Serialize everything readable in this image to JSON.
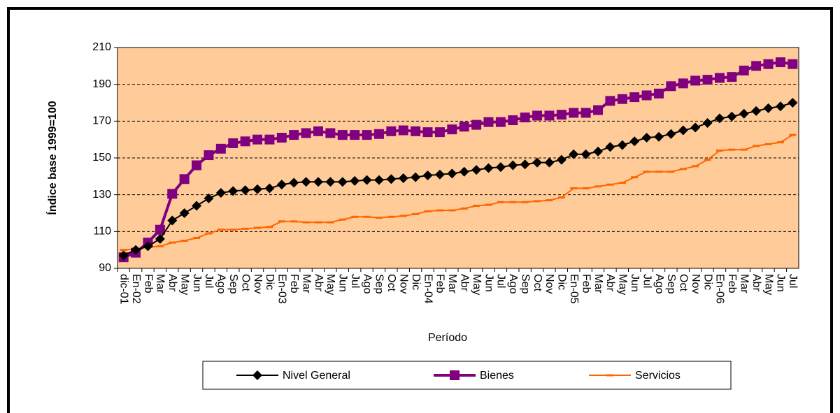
{
  "chart_data": {
    "type": "line",
    "x_label": "Período",
    "y_label": "Índice base 1999=100",
    "categories": [
      "dic-01",
      "En-02",
      "Feb",
      "Mar",
      "Abr",
      "May",
      "Jun",
      "Jul",
      "Ago",
      "Sep",
      "Oct",
      "Nov",
      "Dic",
      "En-03",
      "Feb",
      "Mar",
      "Abr",
      "May",
      "Jun",
      "Jul",
      "Ago",
      "Sep",
      "Oct",
      "Nov",
      "Dic",
      "En-04",
      "Feb",
      "Mar",
      "Abr",
      "May",
      "Jun",
      "Jul",
      "Ago",
      "Sep",
      "Oct",
      "Nov",
      "Dic",
      "En-05",
      "Feb",
      "Mar",
      "Abr",
      "May",
      "Jun",
      "Jul",
      "Ago",
      "Sep",
      "Oct",
      "Nov",
      "Dic",
      "En-06",
      "Feb",
      "Mar",
      "Abr",
      "May",
      "Jun",
      "Jul"
    ],
    "series": [
      {
        "name": "Nivel General",
        "color": "#000000",
        "marker": "diamond",
        "values": [
          97,
          100,
          102,
          106,
          116,
          120,
          124,
          128,
          131,
          132,
          132.5,
          133,
          133.5,
          135.5,
          136.5,
          137,
          137,
          137,
          137,
          137.5,
          138,
          138,
          138.5,
          139,
          139.5,
          140.5,
          141,
          141.5,
          142.5,
          143.5,
          144.5,
          145,
          146,
          146.5,
          147.5,
          147.5,
          149,
          152,
          152,
          153.5,
          156,
          157,
          159,
          161,
          161.5,
          163,
          165,
          166.5,
          169,
          171.5,
          172.5,
          174,
          175.5,
          177,
          178,
          180
        ]
      },
      {
        "name": "Bienes",
        "color": "#800080",
        "marker": "square",
        "values": [
          96,
          98.5,
          104,
          111,
          130.5,
          138.5,
          146,
          151.5,
          155,
          158,
          159,
          160,
          160,
          161,
          162.5,
          163.5,
          164.5,
          163.5,
          162.5,
          162.5,
          162.5,
          163,
          164.5,
          165,
          164.5,
          164,
          164,
          165.5,
          167,
          168,
          169.5,
          169.5,
          170.5,
          172,
          173,
          173,
          173.5,
          174.5,
          174.5,
          176,
          181,
          182,
          183,
          184,
          185,
          189,
          190.5,
          192,
          192.5,
          193.5,
          194,
          197.5,
          200,
          201,
          202,
          201
        ]
      },
      {
        "name": "Servicios",
        "color": "#FF6600",
        "marker": "dash",
        "values": [
          100,
          100.5,
          101.5,
          102,
          104,
          105,
          106.5,
          109,
          111,
          111,
          111.5,
          112,
          112.5,
          115.5,
          115.5,
          115,
          115,
          115,
          116.5,
          118,
          118,
          117.5,
          118,
          118.5,
          119.5,
          121,
          121.5,
          121.5,
          122.5,
          124,
          124.5,
          126,
          126,
          126,
          126.5,
          127,
          128.5,
          133.5,
          133.5,
          134.5,
          135.5,
          136.5,
          139.5,
          142.5,
          142.5,
          142.5,
          144,
          145.5,
          149,
          154,
          154.5,
          154.5,
          156.5,
          157.5,
          158.5,
          162.5
        ]
      }
    ],
    "ylim": [
      90,
      210
    ],
    "yticks": [
      90,
      110,
      130,
      150,
      170,
      190,
      210
    ],
    "grid": true,
    "legend": "bottom",
    "plot_background": "#FFCC99"
  }
}
